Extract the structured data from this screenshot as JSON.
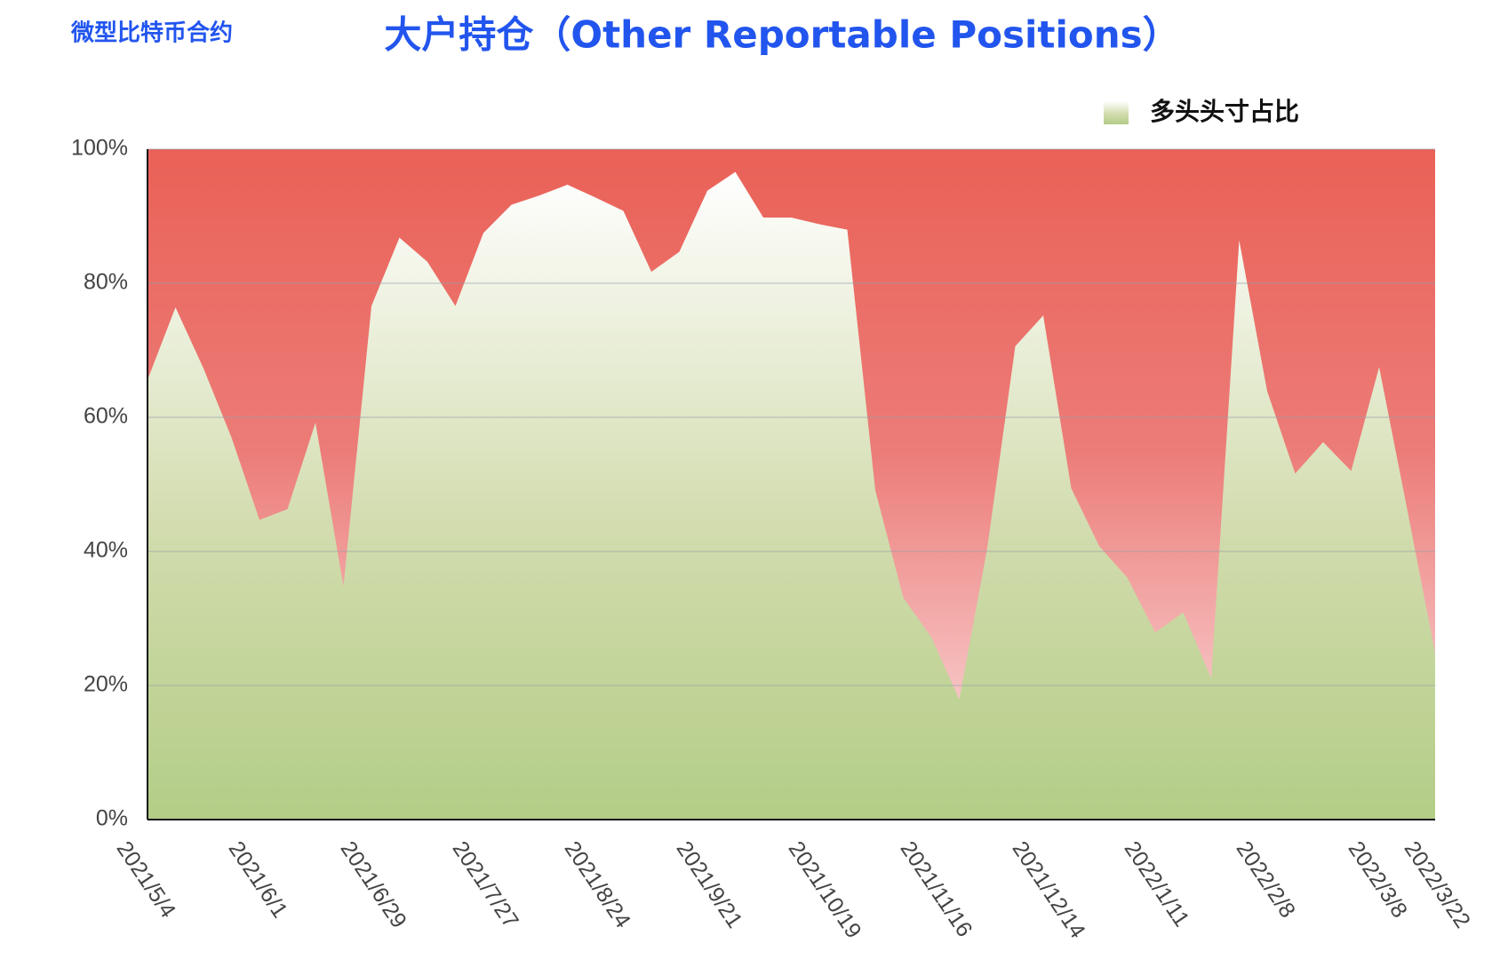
{
  "chart_data": {
    "type": "area",
    "subtitle": "微型比特币合约",
    "title": "大户持仓（Other Reportable Positions）",
    "categories": [
      "2021/5/4",
      null,
      null,
      null,
      "2021/6/1",
      null,
      null,
      null,
      "2021/6/29",
      null,
      null,
      null,
      "2021/7/27",
      null,
      null,
      null,
      "2021/8/24",
      null,
      null,
      null,
      "2021/9/21",
      null,
      null,
      null,
      "2021/10/19",
      null,
      null,
      null,
      "2021/11/16",
      null,
      null,
      null,
      "2021/12/14",
      null,
      null,
      null,
      "2022/1/11",
      null,
      null,
      null,
      "2022/2/8",
      null,
      null,
      null,
      "2022/3/8",
      null,
      "2022/3/22"
    ],
    "series": [
      {
        "name": "多头头寸占比",
        "color": "#b5cf88",
        "values": [
          65.6,
          76.4,
          67.3,
          57,
          44.7,
          46.3,
          59.2,
          34.8,
          76.6,
          86.8,
          83.2,
          76.6,
          87.5,
          91.7,
          93.1,
          94.7,
          92.8,
          90.8,
          81.7,
          84.7,
          93.8,
          96.6,
          89.8,
          89.8,
          88.8,
          88,
          49.1,
          33.1,
          27.2,
          17.9,
          40.5,
          70.6,
          75.2,
          49.4,
          40.8,
          36.1,
          27.9,
          30.9,
          21.1,
          86.4,
          63.9,
          51.6,
          56.3,
          52,
          67.5,
          46.3,
          24.8
        ]
      }
    ],
    "ylim": [
      0,
      100
    ],
    "yticks": [
      {
        "value": 0,
        "label": "0%"
      },
      {
        "value": 20,
        "label": "20%"
      },
      {
        "value": 40,
        "label": "40%"
      },
      {
        "value": 60,
        "label": "60%"
      },
      {
        "value": 80,
        "label": "80%"
      },
      {
        "value": 100,
        "label": "100%"
      }
    ],
    "grid": true,
    "legend": "top-right"
  }
}
